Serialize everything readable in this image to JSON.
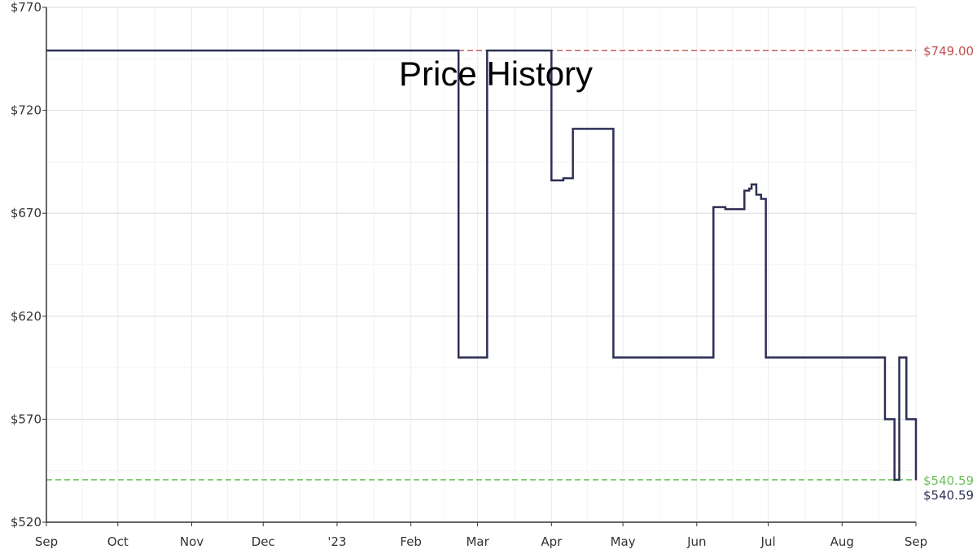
{
  "chart_data": {
    "type": "line",
    "title": "Price History",
    "xlabel": "",
    "ylabel": "",
    "ylim": [
      520,
      770
    ],
    "xlim": [
      "2022-09-01",
      "2023-09-01"
    ],
    "y_ticks": [
      {
        "value": 520,
        "label": "$520"
      },
      {
        "value": 570,
        "label": "$570"
      },
      {
        "value": 620,
        "label": "$620"
      },
      {
        "value": 670,
        "label": "$670"
      },
      {
        "value": 720,
        "label": "$720"
      },
      {
        "value": 770,
        "label": "$770"
      }
    ],
    "x_ticks": [
      {
        "date": "2022-09-01",
        "label": "Sep"
      },
      {
        "date": "2022-10-01",
        "label": "Oct"
      },
      {
        "date": "2022-11-01",
        "label": "Nov"
      },
      {
        "date": "2022-12-01",
        "label": "Dec"
      },
      {
        "date": "2023-01-01",
        "label": "'23"
      },
      {
        "date": "2023-02-01",
        "label": "Feb"
      },
      {
        "date": "2023-03-01",
        "label": "Mar"
      },
      {
        "date": "2023-04-01",
        "label": "Apr"
      },
      {
        "date": "2023-05-01",
        "label": "May"
      },
      {
        "date": "2023-06-01",
        "label": "Jun"
      },
      {
        "date": "2023-07-01",
        "label": "Jul"
      },
      {
        "date": "2023-08-01",
        "label": "Aug"
      },
      {
        "date": "2023-09-01",
        "label": "Sep"
      }
    ],
    "grid": true,
    "series": [
      {
        "color": "#2d2f55",
        "step": true,
        "points": [
          {
            "x": "2022-09-01",
            "y": 749
          },
          {
            "x": "2023-02-21",
            "y": 600
          },
          {
            "x": "2023-03-05",
            "y": 749
          },
          {
            "x": "2023-04-01",
            "y": 686
          },
          {
            "x": "2023-04-06",
            "y": 687
          },
          {
            "x": "2023-04-10",
            "y": 711
          },
          {
            "x": "2023-04-27",
            "y": 600
          },
          {
            "x": "2023-06-08",
            "y": 673
          },
          {
            "x": "2023-06-13",
            "y": 672
          },
          {
            "x": "2023-06-21",
            "y": 681
          },
          {
            "x": "2023-06-23",
            "y": 682
          },
          {
            "x": "2023-06-24",
            "y": 684
          },
          {
            "x": "2023-06-26",
            "y": 679
          },
          {
            "x": "2023-06-28",
            "y": 677
          },
          {
            "x": "2023-06-30",
            "y": 600
          },
          {
            "x": "2023-08-19",
            "y": 570
          },
          {
            "x": "2023-08-23",
            "y": 540.59
          },
          {
            "x": "2023-08-25",
            "y": 600
          },
          {
            "x": "2023-08-28",
            "y": 570
          },
          {
            "x": "2023-09-01",
            "y": 540.59
          }
        ]
      }
    ],
    "reference_lines": [
      {
        "value": 749,
        "label": "$749.00",
        "color": "#c0504d"
      },
      {
        "value": 540.59,
        "label": "$540.59",
        "color": "#6bbf59"
      }
    ],
    "end_label": {
      "value": 540.59,
      "label": "$540.59",
      "color": "#2d2f55"
    }
  }
}
